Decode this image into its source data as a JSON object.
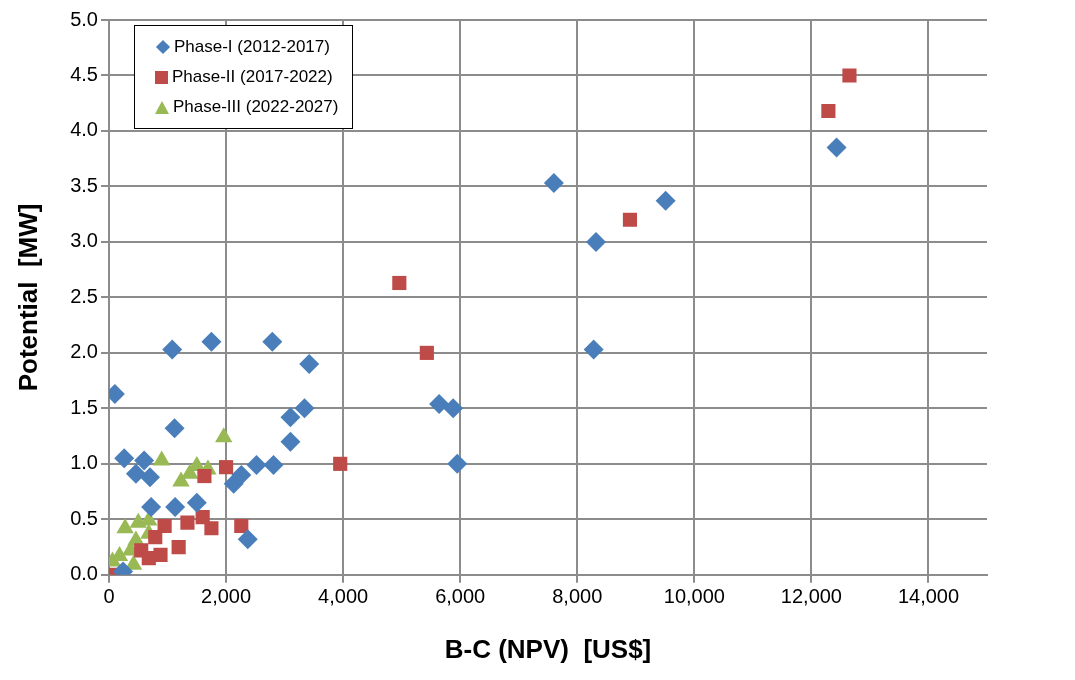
{
  "chart_data": {
    "type": "scatter",
    "xlabel": "B-C (NPV)  [US$]",
    "ylabel": "Potential  [MW]",
    "xlim": [
      0,
      15000
    ],
    "xticks": [
      {
        "value": 0,
        "label": "0"
      },
      {
        "value": 2000,
        "label": "2,000"
      },
      {
        "value": 4000,
        "label": "4,000"
      },
      {
        "value": 6000,
        "label": "6,000"
      },
      {
        "value": 8000,
        "label": "8,000"
      },
      {
        "value": 10000,
        "label": "10,000"
      },
      {
        "value": 12000,
        "label": "12,000"
      },
      {
        "value": 14000,
        "label": "14,000"
      }
    ],
    "ylim": [
      0,
      5
    ],
    "yticks": [
      {
        "value": 0,
        "label": "0.0"
      },
      {
        "value": 0.5,
        "label": "0.5"
      },
      {
        "value": 1,
        "label": "1.0"
      },
      {
        "value": 1.5,
        "label": "1.5"
      },
      {
        "value": 2,
        "label": "2.0"
      },
      {
        "value": 2.5,
        "label": "2.5"
      },
      {
        "value": 3,
        "label": "3.0"
      },
      {
        "value": 3.5,
        "label": "3.5"
      },
      {
        "value": 4,
        "label": "4.0"
      },
      {
        "value": 4.5,
        "label": "4.5"
      },
      {
        "value": 5,
        "label": "5.0"
      }
    ],
    "grid": true,
    "legend": "top left",
    "series": [
      {
        "name": "Phase-I (2012-2017)",
        "color": "#4a7ebb",
        "marker": "diamond",
        "x": [
          100,
          1750,
          1080,
          2790,
          3420,
          1120,
          3340,
          3100,
          3100,
          2810,
          2520,
          2260,
          2130,
          260,
          600,
          460,
          700,
          720,
          1130,
          1500,
          2370,
          240,
          7600,
          8320,
          8280,
          5640,
          5880,
          5950,
          9510,
          12430
        ],
        "values": [
          1.63,
          2.1,
          2.03,
          2.1,
          1.9,
          1.32,
          1.5,
          1.42,
          1.2,
          0.99,
          0.99,
          0.9,
          0.82,
          1.05,
          1.03,
          0.91,
          0.88,
          0.61,
          0.61,
          0.65,
          0.32,
          0.03,
          3.53,
          3.0,
          2.03,
          1.54,
          1.5,
          1.0,
          3.37,
          3.85
        ]
      },
      {
        "name": "Phase-II (2017-2022)",
        "color": "#be4b48",
        "marker": "square",
        "x": [
          12650,
          12290,
          8900,
          4960,
          5430,
          3950,
          90,
          2000,
          1630,
          2260,
          950,
          1340,
          1750,
          1190,
          880,
          790,
          680,
          1600,
          550
        ],
        "values": [
          4.5,
          4.18,
          3.2,
          2.63,
          2.0,
          1.0,
          0.0,
          0.97,
          0.89,
          0.44,
          0.44,
          0.47,
          0.42,
          0.25,
          0.18,
          0.34,
          0.15,
          0.52,
          0.22
        ]
      },
      {
        "name": "Phase-III (2022-2027)",
        "color": "#98b954",
        "marker": "triangle",
        "x": [
          1960,
          900,
          1500,
          1690,
          1230,
          1380,
          275,
          500,
          680,
          180,
          370,
          460,
          420,
          60,
          680
        ],
        "values": [
          1.24,
          1.03,
          0.98,
          0.95,
          0.84,
          0.91,
          0.42,
          0.47,
          0.49,
          0.17,
          0.22,
          0.31,
          0.09,
          0.12,
          0.37
        ]
      }
    ]
  }
}
